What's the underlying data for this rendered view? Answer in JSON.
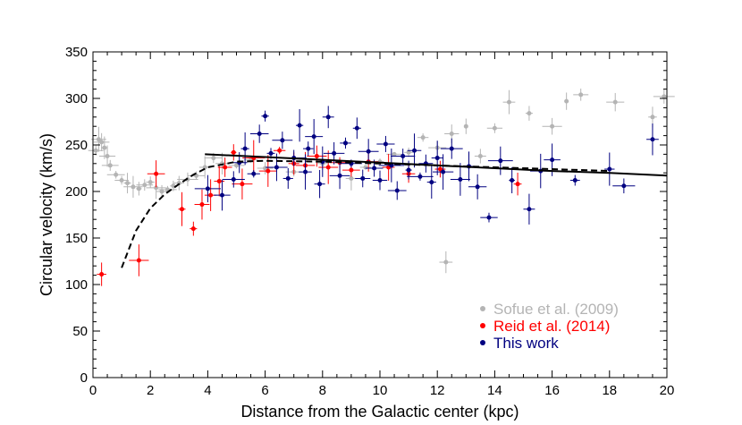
{
  "chart_data": {
    "type": "scatter",
    "title": "",
    "xlabel": "Distance from the Galactic center (kpc)",
    "ylabel": "Circular velocity (km/s)",
    "xlim": [
      0,
      20
    ],
    "ylim": [
      0,
      350
    ],
    "x_ticks": [
      0,
      2,
      4,
      6,
      8,
      10,
      12,
      14,
      16,
      18,
      20
    ],
    "x_tick_labels": [
      "0",
      "2",
      "4",
      "6",
      "8",
      "10",
      "12",
      "14",
      "16",
      "18",
      "20"
    ],
    "y_ticks": [
      0,
      50,
      100,
      150,
      200,
      250,
      300,
      350
    ],
    "y_tick_labels": [
      "0",
      "50",
      "100",
      "150",
      "200",
      "250",
      "300",
      "350"
    ],
    "x_minor_step": 0.5,
    "y_minor_step": 10,
    "grid": false,
    "legend_position": "bottom-right",
    "series": [
      {
        "name": "Sofue et al. (2009)",
        "color": "#b4b4b4",
        "points": [
          {
            "x": 0.1,
            "y": 244
          },
          {
            "x": 0.2,
            "y": 256
          },
          {
            "x": 0.3,
            "y": 253
          },
          {
            "x": 0.4,
            "y": 247
          },
          {
            "x": 0.5,
            "y": 238
          },
          {
            "x": 0.6,
            "y": 228
          },
          {
            "x": 0.8,
            "y": 218
          },
          {
            "x": 1.0,
            "y": 212
          },
          {
            "x": 1.2,
            "y": 209
          },
          {
            "x": 1.4,
            "y": 205
          },
          {
            "x": 1.6,
            "y": 203
          },
          {
            "x": 1.8,
            "y": 207
          },
          {
            "x": 2.0,
            "y": 210
          },
          {
            "x": 2.2,
            "y": 204
          },
          {
            "x": 2.4,
            "y": 200
          },
          {
            "x": 2.6,
            "y": 202
          },
          {
            "x": 2.8,
            "y": 206
          },
          {
            "x": 3.0,
            "y": 209
          },
          {
            "x": 3.3,
            "y": 213
          },
          {
            "x": 3.6,
            "y": 217
          },
          {
            "x": 3.9,
            "y": 226
          },
          {
            "x": 4.2,
            "y": 236
          },
          {
            "x": 4.5,
            "y": 230
          },
          {
            "x": 5.0,
            "y": 228
          },
          {
            "x": 5.5,
            "y": 234
          },
          {
            "x": 6.0,
            "y": 225
          },
          {
            "x": 7.0,
            "y": 221
          },
          {
            "x": 8.0,
            "y": 230
          },
          {
            "x": 9.0,
            "y": 214
          },
          {
            "x": 9.5,
            "y": 226
          },
          {
            "x": 10.0,
            "y": 232
          },
          {
            "x": 10.5,
            "y": 240
          },
          {
            "x": 11.0,
            "y": 242
          },
          {
            "x": 11.5,
            "y": 258
          },
          {
            "x": 12.0,
            "y": 247
          },
          {
            "x": 12.3,
            "y": 124
          },
          {
            "x": 12.5,
            "y": 262
          },
          {
            "x": 13.0,
            "y": 270
          },
          {
            "x": 13.5,
            "y": 238
          },
          {
            "x": 14.0,
            "y": 268
          },
          {
            "x": 14.5,
            "y": 296
          },
          {
            "x": 15.2,
            "y": 284
          },
          {
            "x": 16.0,
            "y": 270
          },
          {
            "x": 16.5,
            "y": 297
          },
          {
            "x": 17.0,
            "y": 304
          },
          {
            "x": 18.2,
            "y": 296
          },
          {
            "x": 19.5,
            "y": 280
          },
          {
            "x": 19.9,
            "y": 302
          }
        ]
      },
      {
        "name": "Reid et al. (2014)",
        "color": "#ff0000",
        "points": [
          {
            "x": 0.3,
            "y": 111
          },
          {
            "x": 1.6,
            "y": 126
          },
          {
            "x": 2.2,
            "y": 219
          },
          {
            "x": 3.1,
            "y": 181
          },
          {
            "x": 3.5,
            "y": 160
          },
          {
            "x": 3.8,
            "y": 186
          },
          {
            "x": 4.1,
            "y": 196
          },
          {
            "x": 4.4,
            "y": 211
          },
          {
            "x": 4.6,
            "y": 226
          },
          {
            "x": 4.9,
            "y": 242
          },
          {
            "x": 5.2,
            "y": 208
          },
          {
            "x": 5.6,
            "y": 236
          },
          {
            "x": 6.1,
            "y": 222
          },
          {
            "x": 6.5,
            "y": 244
          },
          {
            "x": 7.0,
            "y": 230
          },
          {
            "x": 7.4,
            "y": 228
          },
          {
            "x": 7.8,
            "y": 238
          },
          {
            "x": 8.2,
            "y": 226
          },
          {
            "x": 8.6,
            "y": 231
          },
          {
            "x": 9.0,
            "y": 223
          },
          {
            "x": 9.6,
            "y": 232
          },
          {
            "x": 10.3,
            "y": 226
          },
          {
            "x": 11.0,
            "y": 219
          },
          {
            "x": 12.1,
            "y": 224
          },
          {
            "x": 14.8,
            "y": 208
          }
        ]
      },
      {
        "name": "This work",
        "color": "#000080",
        "points": [
          {
            "x": 4.0,
            "y": 203
          },
          {
            "x": 4.5,
            "y": 196
          },
          {
            "x": 4.9,
            "y": 213
          },
          {
            "x": 5.1,
            "y": 231
          },
          {
            "x": 5.3,
            "y": 246
          },
          {
            "x": 5.6,
            "y": 219
          },
          {
            "x": 5.8,
            "y": 262
          },
          {
            "x": 6.0,
            "y": 281
          },
          {
            "x": 6.2,
            "y": 241
          },
          {
            "x": 6.4,
            "y": 226
          },
          {
            "x": 6.6,
            "y": 255
          },
          {
            "x": 6.8,
            "y": 214
          },
          {
            "x": 7.0,
            "y": 236
          },
          {
            "x": 7.2,
            "y": 271
          },
          {
            "x": 7.4,
            "y": 221
          },
          {
            "x": 7.5,
            "y": 246
          },
          {
            "x": 7.7,
            "y": 259
          },
          {
            "x": 7.9,
            "y": 208
          },
          {
            "x": 8.0,
            "y": 232
          },
          {
            "x": 8.2,
            "y": 280
          },
          {
            "x": 8.4,
            "y": 241
          },
          {
            "x": 8.6,
            "y": 217
          },
          {
            "x": 8.8,
            "y": 252
          },
          {
            "x": 9.0,
            "y": 230
          },
          {
            "x": 9.2,
            "y": 268
          },
          {
            "x": 9.4,
            "y": 214
          },
          {
            "x": 9.6,
            "y": 243
          },
          {
            "x": 9.8,
            "y": 225
          },
          {
            "x": 10.0,
            "y": 212
          },
          {
            "x": 10.2,
            "y": 251
          },
          {
            "x": 10.4,
            "y": 228
          },
          {
            "x": 10.6,
            "y": 201
          },
          {
            "x": 10.8,
            "y": 238
          },
          {
            "x": 11.0,
            "y": 223
          },
          {
            "x": 11.2,
            "y": 244
          },
          {
            "x": 11.4,
            "y": 216
          },
          {
            "x": 11.6,
            "y": 230
          },
          {
            "x": 11.8,
            "y": 210
          },
          {
            "x": 12.0,
            "y": 236
          },
          {
            "x": 12.2,
            "y": 221
          },
          {
            "x": 12.5,
            "y": 246
          },
          {
            "x": 12.8,
            "y": 213
          },
          {
            "x": 13.1,
            "y": 227
          },
          {
            "x": 13.4,
            "y": 205
          },
          {
            "x": 13.8,
            "y": 172
          },
          {
            "x": 14.2,
            "y": 233
          },
          {
            "x": 14.6,
            "y": 212
          },
          {
            "x": 15.2,
            "y": 181
          },
          {
            "x": 15.6,
            "y": 222
          },
          {
            "x": 16.0,
            "y": 234
          },
          {
            "x": 16.8,
            "y": 212
          },
          {
            "x": 18.0,
            "y": 224
          },
          {
            "x": 18.5,
            "y": 206
          },
          {
            "x": 19.5,
            "y": 256
          }
        ]
      }
    ],
    "curves": [
      {
        "name": "rotation-curve-solid",
        "style": "solid",
        "color": "#000000",
        "x": [
          3.9,
          6,
          8,
          10,
          12,
          14,
          16,
          18,
          20
        ],
        "y": [
          240,
          237,
          234,
          231,
          228,
          225,
          222,
          220,
          217
        ]
      },
      {
        "name": "rotation-curve-dashed",
        "style": "dashed",
        "color": "#000000",
        "x": [
          1.0,
          1.5,
          2.0,
          2.5,
          3.0,
          3.5,
          4.0,
          5.0,
          6.0,
          8.0,
          10.0,
          12.0,
          14.0,
          16.0,
          18.0
        ],
        "y": [
          118,
          158,
          182,
          197,
          208,
          218,
          226,
          232,
          233,
          232,
          230,
          228,
          226,
          224,
          222
        ]
      }
    ]
  }
}
